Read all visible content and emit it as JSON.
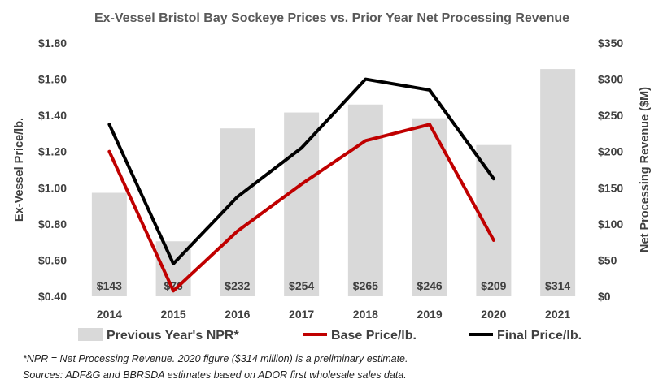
{
  "chart_data": {
    "type": "bar+line",
    "title": "Ex-Vessel Bristol Bay Sockeye Prices vs. Prior Year Net Processing Revenue",
    "categories": [
      "2014",
      "2015",
      "2016",
      "2017",
      "2018",
      "2019",
      "2020",
      "2021"
    ],
    "left_axis": {
      "label": "Ex-Vessel Price/lb.",
      "range": [
        0.4,
        1.8
      ],
      "ticks": [
        "$0.40",
        "$0.60",
        "$0.80",
        "$1.00",
        "$1.20",
        "$1.40",
        "$1.60",
        "$1.80"
      ],
      "tick_values": [
        0.4,
        0.6,
        0.8,
        1.0,
        1.2,
        1.4,
        1.6,
        1.8
      ]
    },
    "right_axis": {
      "label": "Net Processing Revenue ($M)",
      "range": [
        0,
        350
      ],
      "ticks": [
        "$0",
        "$50",
        "$100",
        "$150",
        "$200",
        "$250",
        "$300",
        "$350"
      ],
      "tick_values": [
        0,
        50,
        100,
        150,
        200,
        250,
        300,
        350
      ]
    },
    "bars": {
      "name": "Previous Year's NPR*",
      "axis": "right",
      "color": "#d9d9d9",
      "values": [
        143,
        76,
        232,
        254,
        265,
        246,
        209,
        314
      ],
      "labels": [
        "$143",
        "$76",
        "$232",
        "$254",
        "$265",
        "$246",
        "$209",
        "$314"
      ]
    },
    "series": [
      {
        "name": "Base Price/lb.",
        "axis": "left",
        "color": "#c00000",
        "values": [
          1.2,
          0.43,
          0.76,
          1.02,
          1.26,
          1.35,
          0.71,
          null
        ]
      },
      {
        "name": "Final Price/lb.",
        "axis": "left",
        "color": "#000000",
        "values": [
          1.35,
          0.58,
          0.95,
          1.22,
          1.6,
          1.54,
          1.05,
          null
        ]
      }
    ],
    "legend_position": "bottom",
    "grid": false
  },
  "footnotes": [
    "*NPR = Net Processing Revenue. 2020 figure ($314 million) is a preliminary estimate.",
    "Sources: ADF&G and BBRSDA estimates based on ADOR first wholesale sales data."
  ]
}
